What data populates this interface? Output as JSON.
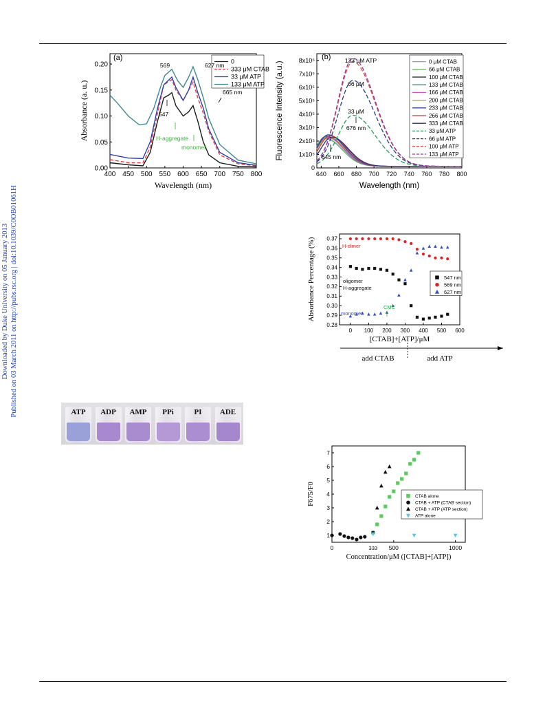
{
  "side_note": {
    "line1": "Downloaded by Duke University on 05 January 2013",
    "line2": "Published on 03 March 2011 on http://pubs.rsc.org | doi:10.1039/C0OB01061H"
  },
  "chart_data": [
    {
      "type": "line",
      "panel_label": "(a)",
      "xlabel": "Wavelength (nm)",
      "ylabel": "Absorbance (a. u.)",
      "xlim": [
        400,
        800
      ],
      "ylim": [
        0,
        0.22
      ],
      "x_ticks": [
        400,
        450,
        500,
        550,
        600,
        650,
        700,
        750,
        800
      ],
      "y_ticks": [
        0.0,
        0.05,
        0.1,
        0.15,
        0.2
      ],
      "y_tick_labels": [
        "0.00",
        "0.05",
        "0.10",
        "0.15",
        "0.20"
      ],
      "annotations": [
        "569",
        "627 nm",
        "665 nm",
        "547",
        "H-aggregate",
        "monomer"
      ],
      "series": [
        {
          "name": "0",
          "color": "#1a1a1a",
          "dash": "solid",
          "points": [
            [
              400,
              0.01
            ],
            [
              450,
              0.006
            ],
            [
              490,
              0.004
            ],
            [
              510,
              0.03
            ],
            [
              530,
              0.09
            ],
            [
              547,
              0.135
            ],
            [
              560,
              0.14
            ],
            [
              569,
              0.145
            ],
            [
              580,
              0.12
            ],
            [
              600,
              0.1
            ],
            [
              615,
              0.108
            ],
            [
              627,
              0.12
            ],
            [
              640,
              0.09
            ],
            [
              655,
              0.05
            ],
            [
              670,
              0.025
            ],
            [
              700,
              0.01
            ],
            [
              750,
              0.003
            ],
            [
              800,
              0.002
            ]
          ]
        },
        {
          "name": "333 μM CTAB",
          "color": "#e0404a",
          "dash": "dash",
          "points": [
            [
              400,
              0.016
            ],
            [
              450,
              0.01
            ],
            [
              490,
              0.01
            ],
            [
              510,
              0.04
            ],
            [
              530,
              0.105
            ],
            [
              547,
              0.16
            ],
            [
              569,
              0.17
            ],
            [
              580,
              0.15
            ],
            [
              600,
              0.13
            ],
            [
              615,
              0.15
            ],
            [
              627,
              0.165
            ],
            [
              640,
              0.135
            ],
            [
              655,
              0.105
            ],
            [
              670,
              0.07
            ],
            [
              700,
              0.025
            ],
            [
              750,
              0.008
            ],
            [
              800,
              0.004
            ]
          ]
        },
        {
          "name": "33 μM ATP",
          "color": "#2f3fa7",
          "dash": "solid",
          "points": [
            [
              400,
              0.026
            ],
            [
              450,
              0.019
            ],
            [
              490,
              0.018
            ],
            [
              510,
              0.05
            ],
            [
              530,
              0.115
            ],
            [
              547,
              0.16
            ],
            [
              569,
              0.175
            ],
            [
              580,
              0.155
            ],
            [
              600,
              0.13
            ],
            [
              615,
              0.15
            ],
            [
              627,
              0.175
            ],
            [
              640,
              0.145
            ],
            [
              655,
              0.115
            ],
            [
              670,
              0.075
            ],
            [
              700,
              0.03
            ],
            [
              750,
              0.01
            ],
            [
              800,
              0.005
            ]
          ]
        },
        {
          "name": "133 μM ATP",
          "color": "#3d8a8d",
          "dash": "solid",
          "points": [
            [
              400,
              0.14
            ],
            [
              420,
              0.125
            ],
            [
              450,
              0.1
            ],
            [
              480,
              0.083
            ],
            [
              500,
              0.085
            ],
            [
              520,
              0.115
            ],
            [
              540,
              0.16
            ],
            [
              550,
              0.178
            ],
            [
              569,
              0.19
            ],
            [
              585,
              0.168
            ],
            [
              600,
              0.155
            ],
            [
              615,
              0.175
            ],
            [
              627,
              0.195
            ],
            [
              640,
              0.17
            ],
            [
              655,
              0.135
            ],
            [
              670,
              0.095
            ],
            [
              700,
              0.045
            ],
            [
              750,
              0.015
            ],
            [
              800,
              0.008
            ]
          ]
        }
      ]
    },
    {
      "type": "line",
      "panel_label": "(b)",
      "xlabel": "Wavelength (nm)",
      "ylabel": "Fluorescence Intensity (a.u.)",
      "xlim": [
        635,
        800
      ],
      "ylim": [
        0,
        850000
      ],
      "x_ticks": [
        640,
        660,
        680,
        700,
        720,
        740,
        760,
        780,
        800
      ],
      "y_ticks": [
        0,
        100000,
        200000,
        300000,
        400000,
        500000,
        600000,
        700000,
        800000
      ],
      "y_tick_labels": [
        "0",
        "1x10⁵",
        "2x10⁵",
        "3x10⁵",
        "4x10⁵",
        "5x10⁵",
        "6x10⁵",
        "7x10⁵",
        "8x10⁵"
      ],
      "annotations": [
        "133 μM ATP",
        "66 μM",
        "33 μM",
        "676 nm",
        "645 nm"
      ],
      "series": [
        {
          "name": "0 μM CTAB",
          "color": "#8a9ad8",
          "dash": "solid",
          "peak_x": 645,
          "peak": 205000
        },
        {
          "name": "66 μM CTAB",
          "color": "#6bbf5a",
          "dash": "solid",
          "peak_x": 645,
          "peak": 210000
        },
        {
          "name": "100 μM CTAB",
          "color": "#1a1a1a",
          "dash": "solid",
          "peak_x": 646,
          "peak": 225000
        },
        {
          "name": "133 μM CTAB",
          "color": "#3b8c8c",
          "dash": "solid",
          "peak_x": 646,
          "peak": 222000
        },
        {
          "name": "166 μM CTAB",
          "color": "#cc55cc",
          "dash": "solid",
          "peak_x": 647,
          "peak": 215000
        },
        {
          "name": "200 μM CTAB",
          "color": "#b8a030",
          "dash": "solid",
          "peak_x": 648,
          "peak": 220000
        },
        {
          "name": "233 μM CTAB",
          "color": "#3344aa",
          "dash": "solid",
          "peak_x": 648,
          "peak": 235000
        },
        {
          "name": "266 μM CTAB",
          "color": "#c03a3a",
          "dash": "solid",
          "peak_x": 650,
          "peak": 228000
        },
        {
          "name": "333 μM CTAB",
          "color": "#2b2b7a",
          "dash": "solid",
          "peak_x": 652,
          "peak": 218000
        },
        {
          "name": "33 μM ATP",
          "color": "#2a9a5a",
          "dash": "dash",
          "peak_x": 676,
          "peak": 380000
        },
        {
          "name": "66 μM ATP",
          "color": "#2a3a8a",
          "dash": "dash",
          "peak_x": 676,
          "peak": 640000
        },
        {
          "name": "100 μM ATP",
          "color": "#e04848",
          "dash": "dash",
          "peak_x": 676,
          "peak": 780000
        },
        {
          "name": "133 μM ATP",
          "color": "#8a3a9a",
          "dash": "dash",
          "peak_x": 676,
          "peak": 805000
        }
      ]
    },
    {
      "type": "scatter",
      "xlabel": "[CTAB]+[ATP]/μM",
      "ylabel": "Absorbance Percentage (%)",
      "xlim": [
        -60,
        600
      ],
      "ylim": [
        0.28,
        0.375
      ],
      "x_ticks": [
        0,
        100,
        200,
        300,
        400,
        500,
        600
      ],
      "y_ticks": [
        0.28,
        0.29,
        0.3,
        0.31,
        0.32,
        0.33,
        0.34,
        0.35,
        0.36,
        0.37
      ],
      "y_tick_labels": [
        "0.28",
        "0.29",
        "0.30",
        "0.31",
        "0.32",
        "0.33",
        "0.34",
        "0.35",
        "0.36",
        "0.37"
      ],
      "annotations": [
        "H-dimer",
        "oligomer",
        "H-aggregate",
        "monomer",
        "CMC"
      ],
      "bottom_labels": [
        "add  CTAB",
        "add ATP"
      ],
      "series": [
        {
          "name": "547 nm",
          "color": "#111111",
          "marker": "square",
          "points": [
            [
              0,
              0.341
            ],
            [
              33,
              0.339
            ],
            [
              66,
              0.338
            ],
            [
              100,
              0.339
            ],
            [
              133,
              0.339
            ],
            [
              166,
              0.338
            ],
            [
              200,
              0.337
            ],
            [
              233,
              0.333
            ],
            [
              266,
              0.327
            ],
            [
              300,
              0.323
            ],
            [
              333,
              0.3
            ],
            [
              366,
              0.288
            ],
            [
              400,
              0.286
            ],
            [
              433,
              0.287
            ],
            [
              466,
              0.288
            ],
            [
              500,
              0.289
            ],
            [
              533,
              0.291
            ]
          ]
        },
        {
          "name": "569 nm",
          "color": "#e02020",
          "marker": "circle",
          "points": [
            [
              0,
              0.37
            ],
            [
              33,
              0.37
            ],
            [
              66,
              0.37
            ],
            [
              100,
              0.37
            ],
            [
              133,
              0.37
            ],
            [
              166,
              0.37
            ],
            [
              200,
              0.37
            ],
            [
              233,
              0.37
            ],
            [
              266,
              0.369
            ],
            [
              300,
              0.367
            ],
            [
              333,
              0.365
            ],
            [
              366,
              0.359
            ],
            [
              400,
              0.354
            ],
            [
              433,
              0.352
            ],
            [
              466,
              0.35
            ],
            [
              500,
              0.35
            ],
            [
              533,
              0.349
            ]
          ]
        },
        {
          "name": "627 nm",
          "color": "#3350c0",
          "marker": "triangle",
          "points": [
            [
              0,
              0.289
            ],
            [
              33,
              0.291
            ],
            [
              66,
              0.292
            ],
            [
              100,
              0.291
            ],
            [
              133,
              0.291
            ],
            [
              166,
              0.292
            ],
            [
              200,
              0.293
            ],
            [
              233,
              0.3
            ],
            [
              266,
              0.311
            ],
            [
              300,
              0.327
            ],
            [
              333,
              0.337
            ],
            [
              366,
              0.355
            ],
            [
              400,
              0.36
            ],
            [
              433,
              0.362
            ],
            [
              466,
              0.362
            ],
            [
              500,
              0.361
            ],
            [
              533,
              0.361
            ]
          ]
        }
      ]
    },
    {
      "type": "scatter",
      "xlabel": "Concentration/μM ([CTAB]+[ATP])",
      "ylabel": "F675/F0",
      "xlim": [
        0,
        1080
      ],
      "ylim": [
        0.5,
        7.5
      ],
      "x_ticks": [
        0,
        500,
        1000
      ],
      "y_ticks": [
        1,
        2,
        3,
        4,
        5,
        6,
        7
      ],
      "extra_x_label": "333",
      "series": [
        {
          "name": "CTAB alone",
          "color": "#5ec85e",
          "marker": "square",
          "points": [
            [
              333,
              1.2
            ],
            [
              366,
              1.8
            ],
            [
              400,
              2.4
            ],
            [
              433,
              3.1
            ],
            [
              466,
              3.8
            ],
            [
              500,
              4.2
            ],
            [
              533,
              4.8
            ],
            [
              566,
              5.1
            ],
            [
              600,
              5.5
            ],
            [
              633,
              6.2
            ],
            [
              666,
              6.5
            ],
            [
              700,
              7.0
            ]
          ]
        },
        {
          "name": "CTAB + ATP (CTAB section)",
          "color": "#111111",
          "marker": "circle",
          "points": [
            [
              0,
              1.0
            ],
            [
              66,
              1.1
            ],
            [
              100,
              0.95
            ],
            [
              133,
              0.85
            ],
            [
              166,
              0.8
            ],
            [
              200,
              0.7
            ],
            [
              233,
              0.85
            ],
            [
              266,
              0.9
            ],
            [
              333,
              1.2
            ]
          ]
        },
        {
          "name": "CTAB + ATP (ATP section)",
          "color": "#111111",
          "marker": "triangle",
          "points": [
            [
              366,
              3.0
            ],
            [
              400,
              4.6
            ],
            [
              433,
              5.6
            ],
            [
              466,
              6.0
            ]
          ]
        },
        {
          "name": "ATP alone",
          "color": "#5cc5e0",
          "marker": "triangle-down",
          "points": [
            [
              333,
              1.1
            ],
            [
              666,
              1.0
            ],
            [
              1000,
              1.0
            ]
          ]
        }
      ]
    }
  ],
  "photo": {
    "vials": [
      {
        "label": "ATP",
        "color": "#9aa0d8"
      },
      {
        "label": "ADP",
        "color": "#a889cf"
      },
      {
        "label": "AMP",
        "color": "#a98bd0"
      },
      {
        "label": "PPi",
        "color": "#b499d6"
      },
      {
        "label": "PI",
        "color": "#ab8dd2"
      },
      {
        "label": "ADE",
        "color": "#a587cd"
      }
    ]
  }
}
